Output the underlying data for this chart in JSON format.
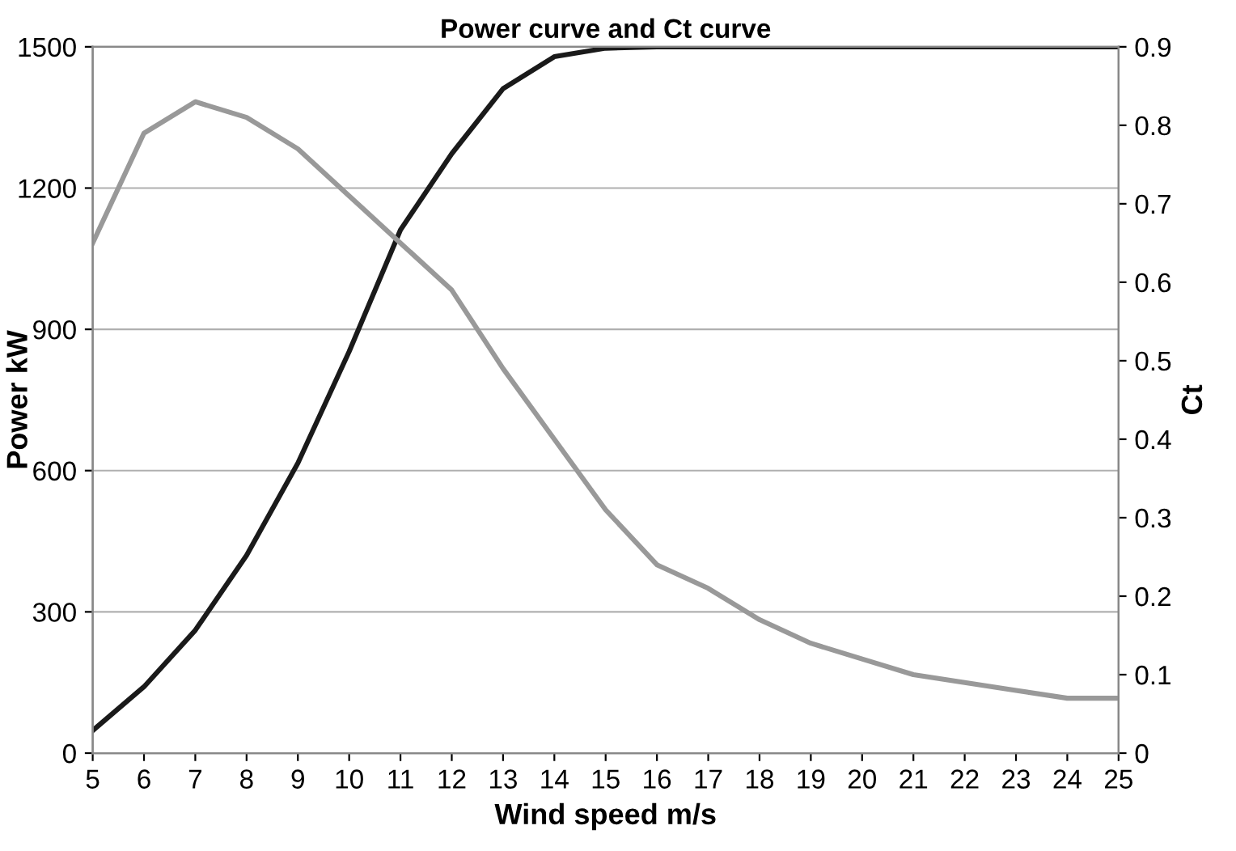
{
  "chart_data": {
    "type": "line",
    "title": "Power curve and Ct curve",
    "xlabel": "Wind speed m/s",
    "ylabel": "Power kW",
    "y2label": "Ct",
    "x": [
      5,
      6,
      7,
      8,
      9,
      10,
      11,
      12,
      13,
      14,
      15,
      16,
      17,
      18,
      19,
      20,
      21,
      22,
      23,
      24,
      25
    ],
    "series": [
      {
        "color": "#1a1a1a",
        "values": [
          48,
          141,
          261,
          420,
          616,
          853,
          1111,
          1273,
          1411,
          1479,
          1497,
          1500,
          1500,
          1500,
          1500,
          1500,
          1500,
          1500,
          1500,
          1500,
          1500
        ]
      },
      {
        "color": "#999999",
        "axis": "y2",
        "values": [
          0.65,
          0.79,
          0.83,
          0.81,
          0.77,
          0.71,
          0.65,
          0.59,
          0.49,
          0.4,
          0.31,
          0.24,
          0.21,
          0.17,
          0.14,
          0.12,
          0.1,
          0.09,
          0.08,
          0.07,
          0.07
        ]
      }
    ],
    "xlim": [
      5,
      25
    ],
    "xticks": [
      5,
      6,
      7,
      8,
      9,
      10,
      11,
      12,
      13,
      14,
      15,
      16,
      17,
      18,
      19,
      20,
      21,
      22,
      23,
      24,
      25
    ],
    "ylim": [
      0,
      1500
    ],
    "yticks": [
      0,
      300,
      600,
      900,
      1200,
      1500
    ],
    "y2lim": [
      0,
      0.9
    ],
    "y2ticks": [
      0,
      0.1,
      0.2,
      0.3,
      0.4,
      0.5,
      0.6,
      0.7,
      0.8,
      0.9
    ],
    "grid": "y",
    "line_style": "solid",
    "marker": "none"
  }
}
